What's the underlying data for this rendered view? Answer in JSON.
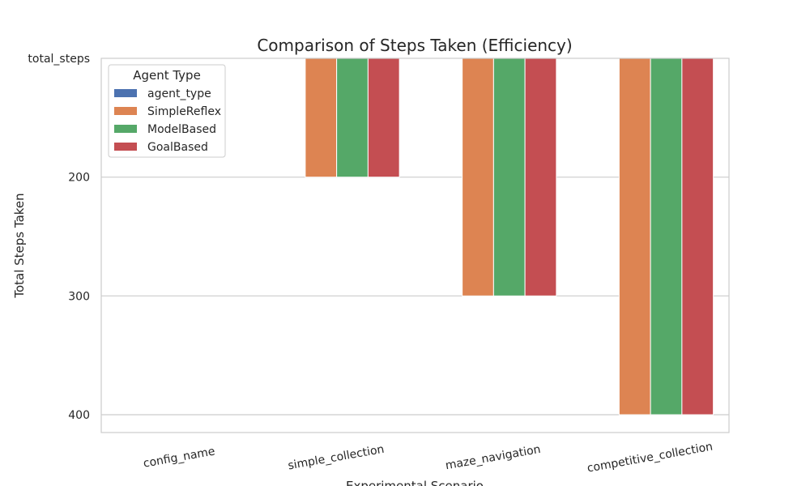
{
  "chart_data": {
    "type": "bar",
    "title": "Comparison of Steps Taken (Efficiency)",
    "xlabel": "Experimental Scenario",
    "ylabel": "Total Steps Taken",
    "categories": [
      "config_name",
      "simple_collection",
      "maze_navigation",
      "competitive_collection"
    ],
    "y_tick_labels": [
      "total_steps",
      "200",
      "300",
      "400"
    ],
    "y_axis_inverted": true,
    "y_axis_top_value": 100,
    "ylim": [
      100,
      415
    ],
    "legend": {
      "title": "Agent Type",
      "placement": "top-left"
    },
    "series": [
      {
        "name": "agent_type",
        "color": "#4c72b0",
        "values": [
          null,
          null,
          null,
          null
        ]
      },
      {
        "name": "SimpleReflex",
        "color": "#dd8452",
        "values": [
          null,
          200,
          300,
          400
        ]
      },
      {
        "name": "ModelBased",
        "color": "#55a868",
        "values": [
          null,
          200,
          300,
          400
        ]
      },
      {
        "name": "GoalBased",
        "color": "#c44e52",
        "values": [
          null,
          200,
          300,
          400
        ]
      }
    ],
    "grid": true
  }
}
